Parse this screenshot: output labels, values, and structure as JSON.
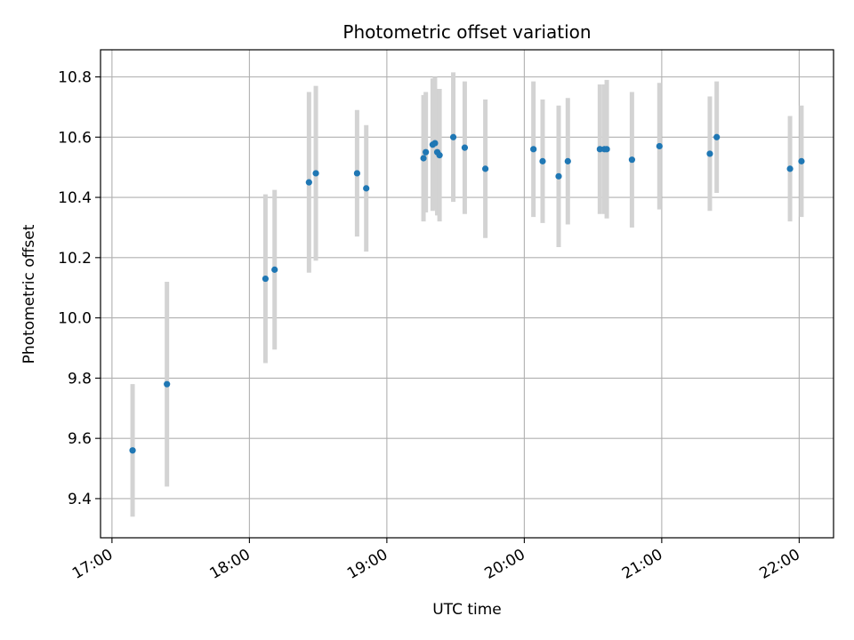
{
  "chart_data": {
    "type": "scatter",
    "title": "Photometric offset variation",
    "xlabel": "UTC time",
    "ylabel": "Photometric offset",
    "xlim": [
      "16:55",
      "22:15"
    ],
    "ylim": [
      9.27,
      10.89
    ],
    "xticks": [
      "17:00",
      "18:00",
      "19:00",
      "20:00",
      "21:00",
      "22:00"
    ],
    "yticks": [
      "9.4",
      "9.6",
      "9.8",
      "10.0",
      "10.2",
      "10.4",
      "10.6",
      "10.8"
    ],
    "grid": true,
    "point_color": "#1f77b4",
    "errorbar_color": "#d3d3d3",
    "points": [
      {
        "x": "17:09",
        "y": 9.56,
        "err": 0.22
      },
      {
        "x": "17:24",
        "y": 9.78,
        "err": 0.34
      },
      {
        "x": "18:07",
        "y": 10.13,
        "err": 0.28
      },
      {
        "x": "18:11",
        "y": 10.16,
        "err": 0.265
      },
      {
        "x": "18:26",
        "y": 10.45,
        "err": 0.3
      },
      {
        "x": "18:29",
        "y": 10.48,
        "err": 0.29
      },
      {
        "x": "18:47",
        "y": 10.48,
        "err": 0.21
      },
      {
        "x": "18:51",
        "y": 10.43,
        "err": 0.21
      },
      {
        "x": "19:16",
        "y": 10.53,
        "err": 0.21
      },
      {
        "x": "19:17",
        "y": 10.55,
        "err": 0.2
      },
      {
        "x": "19:20",
        "y": 10.575,
        "err": 0.22
      },
      {
        "x": "19:21",
        "y": 10.58,
        "err": 0.22
      },
      {
        "x": "19:22",
        "y": 10.55,
        "err": 0.21
      },
      {
        "x": "19:23",
        "y": 10.54,
        "err": 0.22
      },
      {
        "x": "19:29",
        "y": 10.6,
        "err": 0.215
      },
      {
        "x": "19:34",
        "y": 10.565,
        "err": 0.22
      },
      {
        "x": "19:43",
        "y": 10.495,
        "err": 0.23
      },
      {
        "x": "20:04",
        "y": 10.56,
        "err": 0.225
      },
      {
        "x": "20:08",
        "y": 10.52,
        "err": 0.205
      },
      {
        "x": "20:15",
        "y": 10.47,
        "err": 0.235
      },
      {
        "x": "20:19",
        "y": 10.52,
        "err": 0.21
      },
      {
        "x": "20:33",
        "y": 10.56,
        "err": 0.215
      },
      {
        "x": "20:35",
        "y": 10.56,
        "err": 0.215
      },
      {
        "x": "20:36",
        "y": 10.56,
        "err": 0.23
      },
      {
        "x": "20:47",
        "y": 10.525,
        "err": 0.225
      },
      {
        "x": "20:59",
        "y": 10.57,
        "err": 0.21
      },
      {
        "x": "21:21",
        "y": 10.545,
        "err": 0.19
      },
      {
        "x": "21:24",
        "y": 10.6,
        "err": 0.185
      },
      {
        "x": "21:56",
        "y": 10.495,
        "err": 0.175
      },
      {
        "x": "22:01",
        "y": 10.52,
        "err": 0.185
      }
    ]
  }
}
